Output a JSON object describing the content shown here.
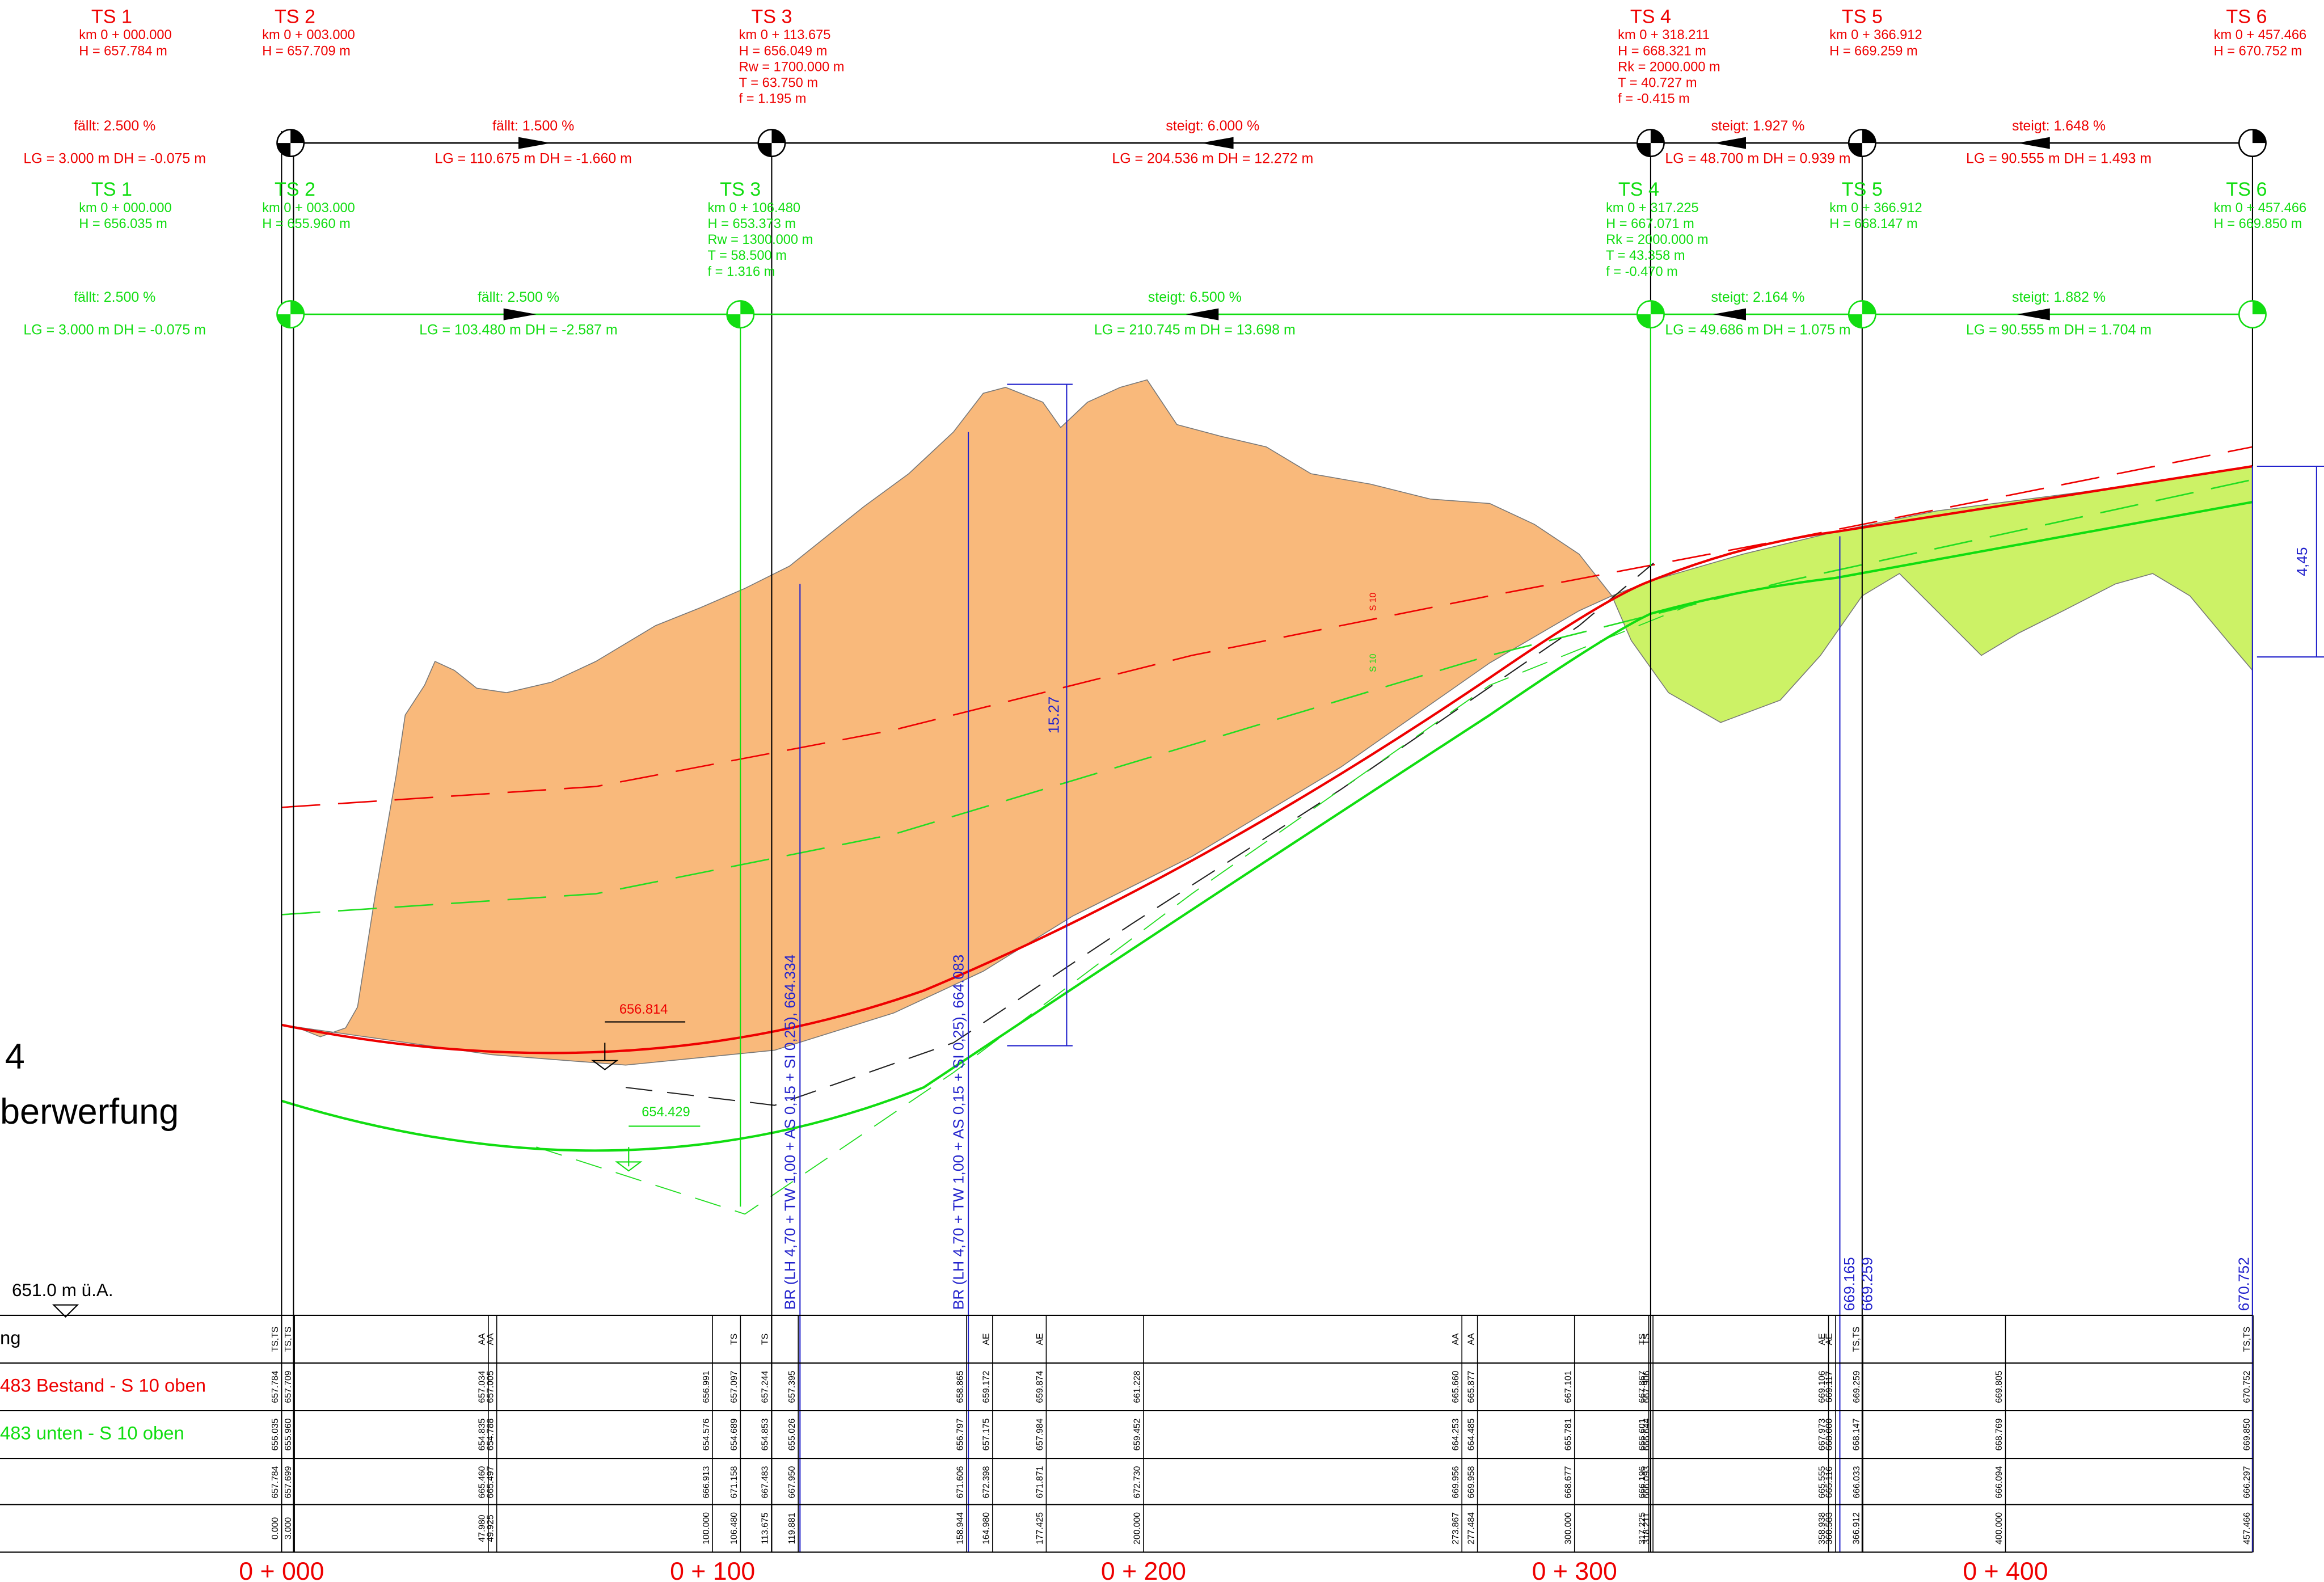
{
  "top_red": {
    "stations": [
      {
        "label": "TS 1",
        "lines": [
          "km 0 + 000.000",
          "H = 657.784 m"
        ]
      },
      {
        "label": "TS 2",
        "lines": [
          "km 0 + 003.000",
          "H = 657.709 m"
        ]
      },
      {
        "label": "TS 3",
        "lines": [
          "km 0 + 113.675",
          "H = 656.049 m",
          "Rw = 1700.000 m",
          "T = 63.750 m",
          "f = 1.195 m"
        ]
      },
      {
        "label": "TS 4",
        "lines": [
          "km 0 + 318.211",
          "H = 668.321 m",
          "Rk = 2000.000 m",
          "T = 40.727 m",
          "f = -0.415 m"
        ]
      },
      {
        "label": "TS 5",
        "lines": [
          "km 0 + 366.912",
          "H = 669.259 m"
        ]
      },
      {
        "label": "TS 6",
        "lines": [
          "km 0 + 457.466",
          "H = 670.752 m"
        ]
      }
    ],
    "grades": [
      {
        "grade": "fällt: 2.500 %",
        "lengths": "LG = 3.000 m  DH = -0.075 m"
      },
      {
        "grade": "fällt: 1.500 %",
        "lengths": "LG = 110.675 m  DH = -1.660 m"
      },
      {
        "grade": "steigt: 6.000 %",
        "lengths": "LG = 204.536 m  DH = 12.272 m"
      },
      {
        "grade": "steigt: 1.927 %",
        "lengths": "LG = 48.700 m  DH = 0.939 m"
      },
      {
        "grade": "steigt: 1.648 %",
        "lengths": "LG = 90.555 m  DH = 1.493 m"
      }
    ]
  },
  "top_green": {
    "stations": [
      {
        "label": "TS 1",
        "lines": [
          "km 0 + 000.000",
          "H = 656.035 m"
        ]
      },
      {
        "label": "TS 2",
        "lines": [
          "km 0 + 003.000",
          "H = 655.960 m"
        ]
      },
      {
        "label": "TS 3",
        "lines": [
          "km 0 + 106.480",
          "H = 653.373 m",
          "Rw = 1300.000 m",
          "T = 58.500 m",
          "f = 1.316 m"
        ]
      },
      {
        "label": "TS 4",
        "lines": [
          "km 0 + 317.225",
          "H = 667.071 m",
          "Rk = 2000.000 m",
          "T = 43.358 m",
          "f = -0.470 m"
        ]
      },
      {
        "label": "TS 5",
        "lines": [
          "km 0 + 366.912",
          "H = 668.147 m"
        ]
      },
      {
        "label": "TS 6",
        "lines": [
          "km 0 + 457.466",
          "H = 669.850 m"
        ]
      }
    ],
    "grades": [
      {
        "grade": "fällt: 2.500 %",
        "lengths": "LG = 3.000 m  DH = -0.075 m"
      },
      {
        "grade": "fällt: 2.500 %",
        "lengths": "LG = 103.480 m  DH = -2.587 m"
      },
      {
        "grade": "steigt: 6.500 %",
        "lengths": "LG = 210.745 m  DH = 13.698 m"
      },
      {
        "grade": "steigt: 2.164 %",
        "lengths": "LG = 49.686 m  DH = 1.075 m"
      },
      {
        "grade": "steigt: 1.882 %",
        "lengths": "LG = 90.555 m  DH = 1.704 m"
      }
    ]
  },
  "annotations": {
    "red_low": "656.814",
    "green_low": "654.429",
    "clearance_mid": "15.27",
    "clearance_end": "4,45",
    "bridge_1": "BR (LH 4,70 + TW 1,00 + AS 0,15 + SI 0,25), 664.334",
    "bridge_2": "BR (LH 4,70 + TW 1,00 + AS 0,15 + SI 0,25), 664.083",
    "height_1": "669.165",
    "height_2": "669.259",
    "height_3": "670.752",
    "red_tag": "S 10",
    "green_tag": "S 10"
  },
  "title_fragment": [
    "4",
    "berwerfung"
  ],
  "legend": {
    "level": "651.0 m ü.A.",
    "row_labels": [
      "ng",
      "483 Bestand - S 10 oben",
      "483 unten - S 10 oben"
    ]
  },
  "chainage": [
    "0 + 000",
    "0 + 100",
    "0 + 200",
    "0 + 300",
    "0 + 400"
  ],
  "table": {
    "columns": [
      {
        "code": "TS,TS",
        "red": "657.784",
        "green": "656.035",
        "ground": "657.784",
        "km": "0.000"
      },
      {
        "code": "TS,TS",
        "red": "657.709",
        "green": "655.960",
        "ground": "657.699",
        "km": "3.000"
      },
      {
        "code": "AA",
        "red": "657.034",
        "green": "654.835",
        "ground": "665.460",
        "km": "47.980"
      },
      {
        "code": "AA",
        "red": "657.005",
        "green": "654.788",
        "ground": "665.497",
        "km": "49.925"
      },
      {
        "code": null,
        "red": "656.991",
        "green": "654.576",
        "ground": "666.913",
        "km": "100.000"
      },
      {
        "code": "TS",
        "red": "657.097",
        "green": "654.689",
        "ground": "671.158",
        "km": "106.480"
      },
      {
        "code": "TS",
        "red": "657.244",
        "green": "654.853",
        "ground": "667.483",
        "km": "113.675"
      },
      {
        "code": null,
        "red": "657.395",
        "green": "655.026",
        "ground": "667.950",
        "km": "119.881"
      },
      {
        "code": null,
        "red": "658.865",
        "green": "656.797",
        "ground": "671.606",
        "km": "158.944"
      },
      {
        "code": "AE",
        "red": "659.172",
        "green": "657.175",
        "ground": "672.398",
        "km": "164.980"
      },
      {
        "code": "AE",
        "red": "659.874",
        "green": "657.984",
        "ground": "671.871",
        "km": "177.425"
      },
      {
        "code": null,
        "red": "661.228",
        "green": "659.452",
        "ground": "672.730",
        "km": "200.000"
      },
      {
        "code": "AA",
        "red": "665.660",
        "green": "664.253",
        "ground": "669.956",
        "km": "273.867"
      },
      {
        "code": "AA",
        "red": "665.877",
        "green": "664.485",
        "ground": "669.958",
        "km": "277.484"
      },
      {
        "code": null,
        "red": "667.101",
        "green": "665.781",
        "ground": "668.677",
        "km": "300.000"
      },
      {
        "code": "TS",
        "red": "667.867",
        "green": "666.601",
        "ground": "666.196",
        "km": "317.225"
      },
      {
        "code": "TS",
        "red": "667.906",
        "green": "666.644",
        "ground": "666.093",
        "km": "318.211"
      },
      {
        "code": "AE",
        "red": "669.106",
        "green": "667.973",
        "ground": "665.555",
        "km": "358.938"
      },
      {
        "code": "AE",
        "red": "669.117",
        "green": "668.000",
        "ground": "665.116",
        "km": "360.583"
      },
      {
        "code": "TS,TS",
        "red": "669.259",
        "green": "668.147",
        "ground": "666.033",
        "km": "366.912"
      },
      {
        "code": null,
        "red": "669.805",
        "green": "668.769",
        "ground": "666.094",
        "km": "400.000"
      },
      {
        "code": "TS,TS",
        "red": "670.752",
        "green": "669.850",
        "ground": "666.297",
        "km": "457.466"
      }
    ]
  }
}
